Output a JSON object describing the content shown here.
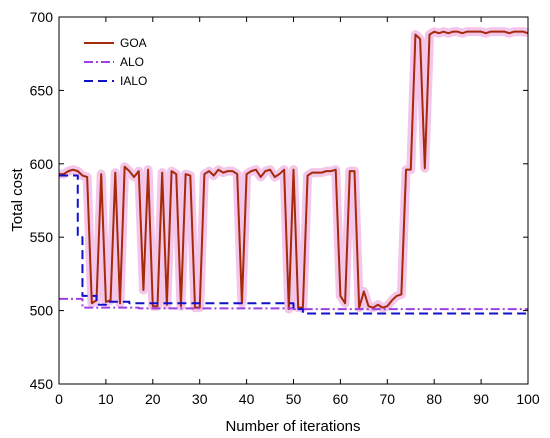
{
  "chart_data": {
    "type": "line",
    "xlabel": "Number of iterations",
    "ylabel": "Total cost",
    "xlim": [
      0,
      100
    ],
    "ylim": [
      450,
      700
    ],
    "xticks": [
      "0",
      "10",
      "20",
      "30",
      "40",
      "50",
      "60",
      "70",
      "80",
      "90",
      "100"
    ],
    "yticks": [
      "450",
      "500",
      "550",
      "600",
      "650",
      "700"
    ],
    "legend_position": "top-left",
    "series": [
      {
        "name": "GOA",
        "color": "#a52a0a",
        "style": "solid",
        "x": [
          0,
          1,
          2,
          3,
          4,
          5,
          6,
          7,
          8,
          9,
          10,
          11,
          12,
          13,
          14,
          15,
          16,
          17,
          18,
          19,
          20,
          21,
          22,
          23,
          24,
          25,
          26,
          27,
          28,
          29,
          30,
          31,
          32,
          33,
          34,
          35,
          36,
          37,
          38,
          39,
          40,
          41,
          42,
          43,
          44,
          45,
          46,
          47,
          48,
          49,
          50,
          51,
          52,
          53,
          54,
          55,
          56,
          57,
          58,
          59,
          60,
          61,
          62,
          63,
          64,
          65,
          66,
          67,
          68,
          69,
          70,
          71,
          72,
          73,
          74,
          75,
          76,
          77,
          78,
          79,
          80,
          81,
          82,
          83,
          84,
          85,
          86,
          87,
          88,
          89,
          90,
          91,
          92,
          93,
          94,
          95,
          96,
          97,
          98,
          99,
          100
        ],
        "y": [
          593,
          593,
          595,
          596,
          595,
          592,
          591,
          505,
          507,
          593,
          506,
          507,
          594,
          505,
          598,
          595,
          591,
          595,
          514,
          596,
          503,
          503,
          594,
          504,
          595,
          593,
          503,
          593,
          592,
          502,
          502,
          593,
          595,
          592,
          596,
          594,
          595,
          595,
          593,
          505,
          593,
          595,
          596,
          591,
          595,
          596,
          591,
          593,
          596,
          501,
          596,
          502,
          502,
          592,
          594,
          594,
          594,
          595,
          595,
          596,
          510,
          505,
          595,
          595,
          502,
          513,
          503,
          502,
          504,
          502,
          503,
          507,
          510,
          511,
          596,
          596,
          688,
          685,
          597,
          688,
          690,
          689,
          690,
          689,
          690,
          690,
          689,
          690,
          690,
          690,
          690,
          689,
          690,
          690,
          690,
          690,
          689,
          690,
          690,
          690,
          689
        ]
      },
      {
        "name": "ALO",
        "color": "#a040e0",
        "style": "dash-dot",
        "x": [
          0,
          5,
          5,
          17,
          17,
          50,
          50,
          100
        ],
        "y": [
          508,
          508,
          502,
          502,
          501.5,
          501.5,
          501,
          501
        ]
      },
      {
        "name": "IALO",
        "color": "#1010c8",
        "style": "dashed",
        "x": [
          0,
          4,
          4,
          5,
          5,
          8,
          8,
          10,
          10,
          15,
          15,
          50,
          50,
          52,
          52,
          100
        ],
        "y": [
          592,
          592,
          550,
          550,
          510,
          510,
          504,
          504,
          506,
          506,
          505,
          505,
          501,
          501,
          498,
          498
        ]
      }
    ]
  }
}
